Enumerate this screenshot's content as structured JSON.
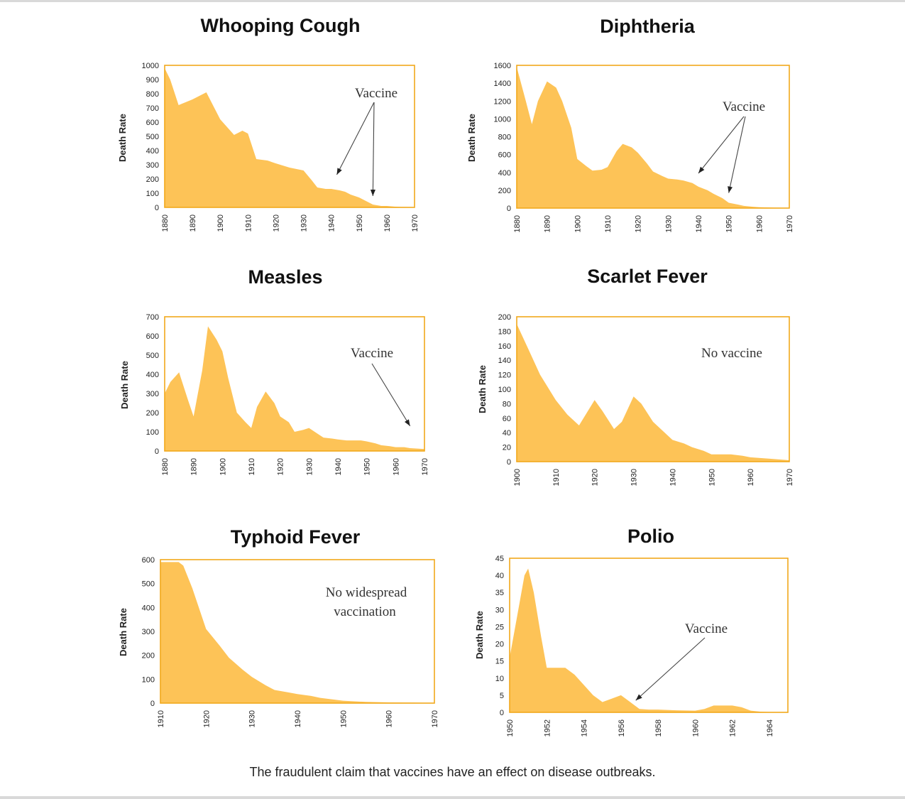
{
  "caption": "The fraudulent claim that vaccines have an effect on disease outbreaks.",
  "colors": {
    "fill": "#fdc357",
    "frame": "#f2a81c",
    "text": "#111111"
  },
  "chart_data": [
    {
      "id": "whooping",
      "type": "area",
      "title": "Whooping Cough",
      "ylabel": "Death Rate",
      "xlim": [
        1880,
        1970
      ],
      "ylim": [
        0,
        1000
      ],
      "xticks": [
        1880,
        1890,
        1900,
        1910,
        1920,
        1930,
        1940,
        1950,
        1960,
        1970
      ],
      "yticks": [
        0,
        100,
        200,
        300,
        400,
        500,
        600,
        700,
        800,
        900,
        1000
      ],
      "x": [
        1880,
        1882,
        1885,
        1890,
        1895,
        1900,
        1905,
        1908,
        1910,
        1913,
        1917,
        1920,
        1925,
        1930,
        1933,
        1935,
        1938,
        1940,
        1943,
        1945,
        1947,
        1950,
        1953,
        1955,
        1958,
        1960,
        1963,
        1965,
        1970
      ],
      "y": [
        980,
        900,
        720,
        760,
        810,
        620,
        510,
        540,
        520,
        340,
        330,
        310,
        280,
        260,
        190,
        140,
        130,
        130,
        120,
        110,
        90,
        70,
        40,
        20,
        10,
        10,
        5,
        3,
        2
      ],
      "annotations": [
        {
          "text": "Vaccine",
          "arrows_to": [
            [
              1942,
              230
            ],
            [
              1955,
              80
            ]
          ]
        }
      ]
    },
    {
      "id": "diphtheria",
      "type": "area",
      "title": "Diphtheria",
      "ylabel": "Death Rate",
      "xlim": [
        1880,
        1970
      ],
      "ylim": [
        0,
        1600
      ],
      "xticks": [
        1880,
        1890,
        1900,
        1910,
        1920,
        1930,
        1940,
        1950,
        1960,
        1970
      ],
      "yticks": [
        0,
        200,
        400,
        600,
        800,
        1000,
        1200,
        1400,
        1600
      ],
      "x": [
        1880,
        1883,
        1885,
        1887,
        1890,
        1893,
        1895,
        1898,
        1900,
        1903,
        1905,
        1908,
        1910,
        1913,
        1915,
        1918,
        1920,
        1923,
        1925,
        1928,
        1930,
        1933,
        1935,
        1938,
        1940,
        1943,
        1945,
        1948,
        1950,
        1953,
        1955,
        1958,
        1960,
        1965,
        1970
      ],
      "y": [
        1580,
        1200,
        940,
        1200,
        1420,
        1350,
        1200,
        900,
        550,
        470,
        420,
        430,
        460,
        640,
        720,
        680,
        620,
        500,
        410,
        360,
        330,
        320,
        310,
        280,
        240,
        200,
        160,
        110,
        60,
        40,
        25,
        15,
        10,
        5,
        3
      ],
      "annotations": [
        {
          "text": "Vaccine",
          "arrows_to": [
            [
              1940,
              390
            ],
            [
              1950,
              170
            ]
          ]
        }
      ]
    },
    {
      "id": "measles",
      "type": "area",
      "title": "Measles",
      "ylabel": "Death Rate",
      "xlim": [
        1880,
        1970
      ],
      "ylim": [
        0,
        700
      ],
      "xticks": [
        1880,
        1890,
        1900,
        1910,
        1920,
        1930,
        1940,
        1950,
        1960,
        1970
      ],
      "yticks": [
        0,
        100,
        200,
        300,
        400,
        500,
        600,
        700
      ],
      "x": [
        1880,
        1882,
        1885,
        1888,
        1890,
        1893,
        1895,
        1898,
        1900,
        1902,
        1905,
        1908,
        1910,
        1912,
        1915,
        1918,
        1920,
        1923,
        1925,
        1928,
        1930,
        1933,
        1935,
        1938,
        1940,
        1943,
        1945,
        1948,
        1950,
        1953,
        1955,
        1958,
        1960,
        1963,
        1965,
        1968,
        1970
      ],
      "y": [
        300,
        360,
        410,
        270,
        180,
        420,
        650,
        580,
        520,
        380,
        200,
        150,
        120,
        230,
        310,
        250,
        180,
        150,
        100,
        110,
        120,
        90,
        70,
        65,
        60,
        55,
        55,
        55,
        50,
        40,
        30,
        25,
        20,
        20,
        15,
        12,
        10
      ],
      "annotations": [
        {
          "text": "Vaccine",
          "arrows_to": [
            [
              1965,
              130
            ]
          ]
        }
      ]
    },
    {
      "id": "scarlet",
      "type": "area",
      "title": "Scarlet Fever",
      "ylabel": "Death Rate",
      "xlim": [
        1900,
        1970
      ],
      "ylim": [
        0,
        200
      ],
      "xticks": [
        1900,
        1910,
        1920,
        1930,
        1940,
        1950,
        1960,
        1970
      ],
      "yticks": [
        0,
        20,
        40,
        60,
        80,
        100,
        120,
        140,
        160,
        180,
        200
      ],
      "x": [
        1900,
        1903,
        1906,
        1910,
        1913,
        1916,
        1920,
        1922,
        1925,
        1927,
        1930,
        1932,
        1935,
        1938,
        1940,
        1943,
        1945,
        1948,
        1950,
        1955,
        1958,
        1960,
        1965,
        1970
      ],
      "y": [
        190,
        155,
        120,
        85,
        65,
        50,
        85,
        70,
        45,
        55,
        90,
        80,
        55,
        40,
        30,
        25,
        20,
        15,
        10,
        10,
        8,
        6,
        4,
        2
      ],
      "annotations": [
        {
          "text": "No vaccine",
          "arrows_to": []
        }
      ]
    },
    {
      "id": "typhoid",
      "type": "area",
      "title": "Typhoid Fever",
      "ylabel": "Death Rate",
      "xlim": [
        1910,
        1970
      ],
      "ylim": [
        0,
        600
      ],
      "xticks": [
        1910,
        1920,
        1930,
        1940,
        1950,
        1960,
        1970
      ],
      "yticks": [
        0,
        100,
        200,
        300,
        400,
        500,
        600
      ],
      "x": [
        1910,
        1912,
        1914,
        1915,
        1917,
        1920,
        1923,
        1925,
        1928,
        1930,
        1933,
        1935,
        1938,
        1940,
        1943,
        1945,
        1948,
        1950,
        1955,
        1960,
        1965,
        1970
      ],
      "y": [
        590,
        590,
        590,
        575,
        480,
        310,
        240,
        190,
        140,
        110,
        75,
        55,
        45,
        38,
        30,
        22,
        15,
        10,
        5,
        3,
        2,
        1
      ],
      "annotations": [
        {
          "text": "No widespread",
          "text2": "vaccination",
          "arrows_to": []
        }
      ]
    },
    {
      "id": "polio",
      "type": "area",
      "title": "Polio",
      "ylabel": "Death Rate",
      "xlim": [
        1950,
        1965
      ],
      "ylim": [
        0,
        45
      ],
      "xticks": [
        1950,
        1952,
        1954,
        1956,
        1958,
        1960,
        1962,
        1964
      ],
      "yticks": [
        0,
        5,
        10,
        15,
        20,
        25,
        30,
        35,
        40,
        45
      ],
      "x": [
        1950,
        1950.4,
        1950.8,
        1951,
        1951.3,
        1951.7,
        1952,
        1952.5,
        1953,
        1953.5,
        1954,
        1954.5,
        1955,
        1955.5,
        1956,
        1956.5,
        1957,
        1957.5,
        1958,
        1959,
        1960,
        1960.5,
        1961,
        1961.5,
        1962,
        1962.5,
        1963,
        1963.5,
        1964,
        1965
      ],
      "y": [
        16,
        28,
        40,
        42,
        35,
        22,
        13,
        13,
        13,
        11,
        8,
        5,
        3,
        4,
        5,
        3,
        1,
        0.8,
        0.8,
        0.6,
        0.5,
        1,
        2,
        2,
        2,
        1.5,
        0.5,
        0.2,
        0.1,
        0.1
      ],
      "annotations": [
        {
          "text": "Vaccine",
          "arrows_to": [
            [
              1956.8,
              3.5
            ]
          ]
        }
      ]
    }
  ]
}
